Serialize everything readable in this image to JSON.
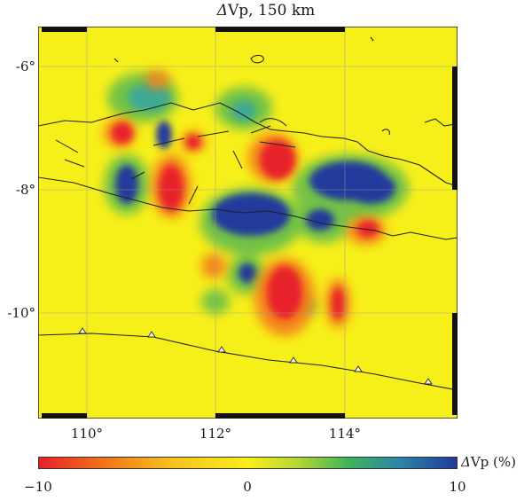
{
  "title": {
    "symbol": "Δ",
    "rest": "Vp, 150 km"
  },
  "axes": {
    "lon_ticks": [
      "110°",
      "112°",
      "114°"
    ],
    "lat_ticks": [
      "-6°",
      "-8°",
      "-10°"
    ]
  },
  "colorbar": {
    "label_symbol": "Δ",
    "label_rest": "Vp (%)",
    "min": "−10",
    "mid": "0",
    "max": "10",
    "colors": [
      "#e8202a",
      "#f4701a",
      "#f7c21c",
      "#f7ef1a",
      "#b6d634",
      "#3fb45a",
      "#2d86a8",
      "#233a9c"
    ]
  },
  "map": {
    "background_color": "#f7ef1a",
    "region": {
      "lon_min": 109.3,
      "lon_max": 115.8,
      "lat_min": -11.75,
      "lat_max": -5.35
    }
  }
}
